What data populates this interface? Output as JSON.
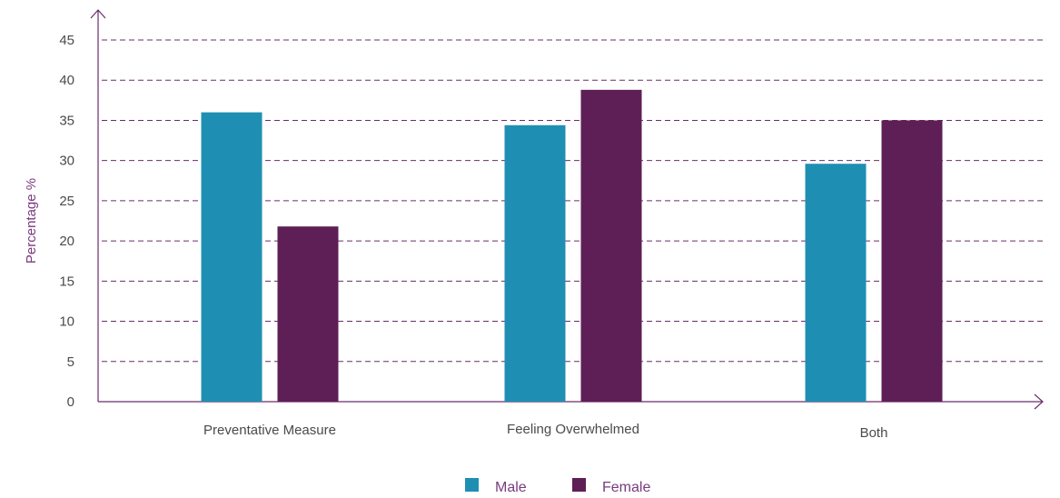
{
  "chart_data": {
    "type": "bar",
    "categories": [
      "Preventative Measure",
      "Feeling Overwhelmed",
      "Both"
    ],
    "series": [
      {
        "name": "Male",
        "values": [
          36,
          34.4,
          29.6
        ]
      },
      {
        "name": "Female",
        "values": [
          21.8,
          38.8,
          35
        ]
      }
    ],
    "title": "",
    "xlabel": "",
    "ylabel": "Percentage %",
    "ylim": [
      0,
      45
    ],
    "yticks": [
      0,
      5,
      10,
      15,
      20,
      25,
      30,
      35,
      40,
      45
    ],
    "grid": true,
    "grid_style": "dashed",
    "legend_position": "bottom-center",
    "colors": {
      "Male": "#1e8fb3",
      "Female": "#5e1f57",
      "grid": "#6a2c6b",
      "axis": "#6a2c6b"
    }
  }
}
